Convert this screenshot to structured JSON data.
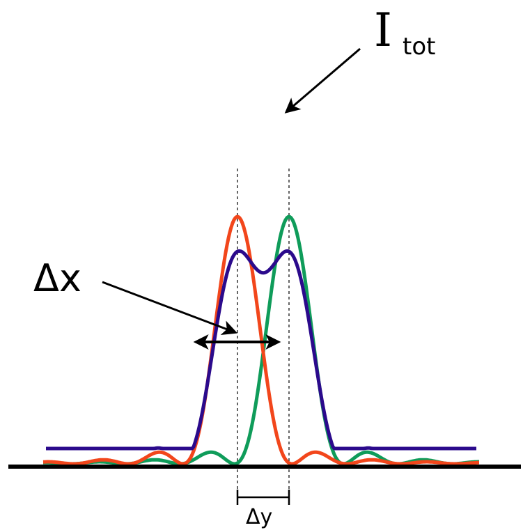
{
  "labels": {
    "total_main": "I",
    "total_sub": "tot",
    "delta_x": "Δx",
    "delta_y": "Δy"
  },
  "colors": {
    "total_curve": "#2b0a8c",
    "red_curve": "#f2461b",
    "green_curve": "#0f9c5a",
    "baseline": "#000000",
    "arrows": "#000000"
  }
}
